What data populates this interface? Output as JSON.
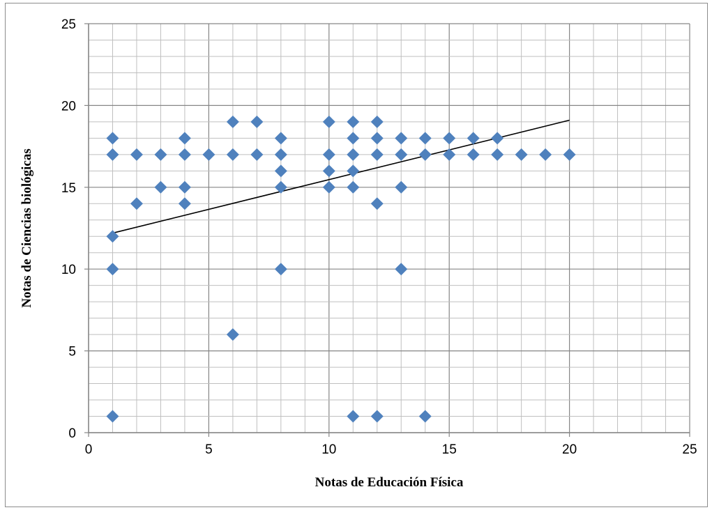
{
  "chart_data": {
    "type": "scatter",
    "title": "",
    "xlabel": "Notas de Educación Física",
    "ylabel": "Notas de Ciencias biológicas",
    "xlim": [
      0,
      25
    ],
    "ylim": [
      0,
      25
    ],
    "x_ticks": [
      0,
      5,
      10,
      15,
      20,
      25
    ],
    "y_ticks": [
      0,
      5,
      10,
      15,
      20,
      25
    ],
    "grid": true,
    "minor_grid": true,
    "legend": "none",
    "marker": "diamond",
    "marker_color": "#4f81bd",
    "trendline": {
      "type": "linear",
      "x": [
        1,
        20
      ],
      "y": [
        12.2,
        19.1
      ],
      "color": "#000000"
    },
    "points": [
      [
        1,
        18
      ],
      [
        1,
        17
      ],
      [
        1,
        12
      ],
      [
        1,
        10
      ],
      [
        1,
        1
      ],
      [
        2,
        17
      ],
      [
        2,
        14
      ],
      [
        3,
        17
      ],
      [
        3,
        15
      ],
      [
        4,
        18
      ],
      [
        4,
        17
      ],
      [
        4,
        15
      ],
      [
        4,
        14
      ],
      [
        5,
        17
      ],
      [
        6,
        19
      ],
      [
        6,
        17
      ],
      [
        6,
        6
      ],
      [
        7,
        19
      ],
      [
        7,
        17
      ],
      [
        8,
        18
      ],
      [
        8,
        17
      ],
      [
        8,
        16
      ],
      [
        8,
        15
      ],
      [
        8,
        10
      ],
      [
        10,
        19
      ],
      [
        10,
        17
      ],
      [
        10,
        16
      ],
      [
        10,
        15
      ],
      [
        11,
        19
      ],
      [
        11,
        18
      ],
      [
        11,
        17
      ],
      [
        11,
        16
      ],
      [
        11,
        15
      ],
      [
        11,
        1
      ],
      [
        12,
        19
      ],
      [
        12,
        18
      ],
      [
        12,
        17
      ],
      [
        12,
        14
      ],
      [
        12,
        1
      ],
      [
        13,
        18
      ],
      [
        13,
        17
      ],
      [
        13,
        15
      ],
      [
        13,
        10
      ],
      [
        14,
        18
      ],
      [
        14,
        17
      ],
      [
        14,
        1
      ],
      [
        15,
        18
      ],
      [
        15,
        17
      ],
      [
        16,
        18
      ],
      [
        16,
        17
      ],
      [
        17,
        18
      ],
      [
        17,
        17
      ],
      [
        18,
        17
      ],
      [
        19,
        17
      ],
      [
        20,
        17
      ]
    ]
  }
}
